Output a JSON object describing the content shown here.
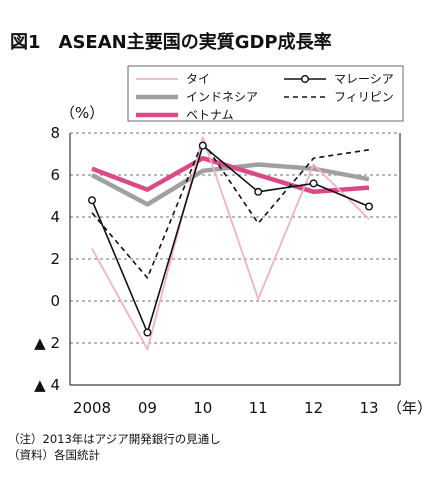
{
  "chart_data": {
    "type": "line",
    "title": "図1　ASEAN主要国の実質GDP成長率",
    "ylabel": "（%）",
    "x_unit": "（年）",
    "x": [
      "2008",
      "09",
      "10",
      "11",
      "12",
      "13"
    ],
    "ylim": [
      -4,
      8
    ],
    "yticks": [
      8,
      6,
      4,
      2,
      0,
      -2,
      -4
    ],
    "ytick_labels": [
      "8",
      "6",
      "4",
      "2",
      "0",
      "▲ 2",
      "▲ 4"
    ],
    "grid": "horizontal dashed",
    "legend_position": "top",
    "series": [
      {
        "name": "タイ",
        "values": [
          2.5,
          -2.3,
          7.8,
          0.1,
          6.5,
          3.9
        ],
        "color": "#f0b2c4",
        "style": "thin"
      },
      {
        "name": "マレーシア",
        "values": [
          4.8,
          -1.5,
          7.4,
          5.2,
          5.6,
          4.5
        ],
        "color": "#111111",
        "style": "solid-marker"
      },
      {
        "name": "インドネシア",
        "values": [
          6.0,
          4.6,
          6.2,
          6.5,
          6.3,
          5.8
        ],
        "color": "#a0a0a0",
        "style": "thick"
      },
      {
        "name": "フィリピン",
        "values": [
          4.2,
          1.1,
          7.6,
          3.7,
          6.8,
          7.2
        ],
        "color": "#111111",
        "style": "dashed"
      },
      {
        "name": "ベトナム",
        "values": [
          6.3,
          5.3,
          6.8,
          6.0,
          5.2,
          5.4
        ],
        "color": "#d94a86",
        "style": "thick"
      }
    ]
  },
  "notes": {
    "note1": "（注）2013年はアジア開発銀行の見通し",
    "note2": "（資料）各国統計"
  }
}
